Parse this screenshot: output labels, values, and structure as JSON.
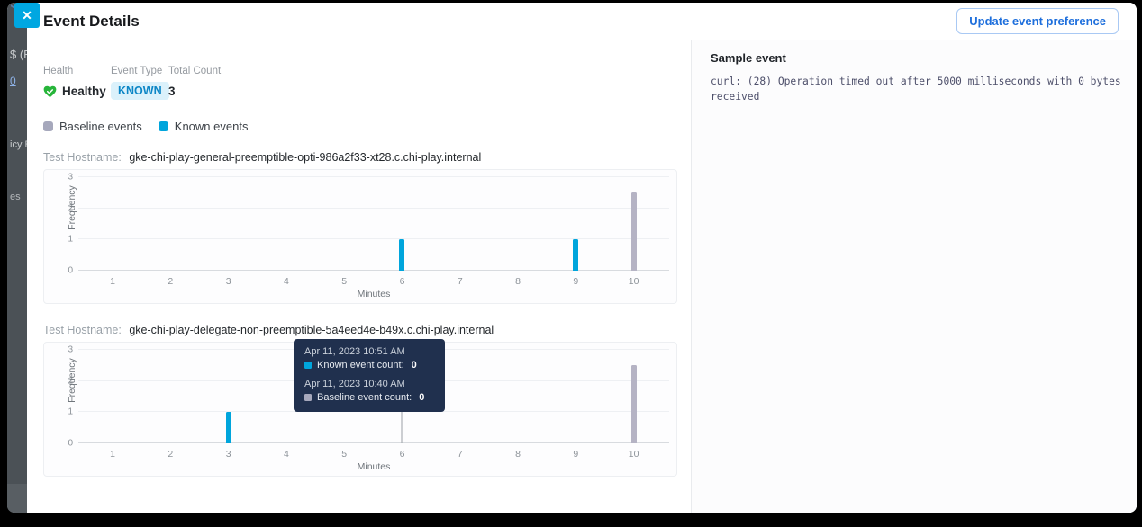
{
  "backdrop": {
    "fragments": {
      "f1": "$ (Ex",
      "f2": "0",
      "f3": "icy E",
      "f4": "es"
    }
  },
  "header": {
    "title": "Event Details",
    "close_icon": "✕",
    "update_button_label": "Update event preference"
  },
  "summary": {
    "health": {
      "label": "Health",
      "value": "Healthy"
    },
    "event_type": {
      "label": "Event Type",
      "value": "KNOWN"
    },
    "total_count": {
      "label": "Total Count",
      "value": "3"
    }
  },
  "legend": {
    "items": [
      {
        "label": "Baseline events",
        "color": "#a6a8bc"
      },
      {
        "label": "Known events",
        "color": "#00a5dc"
      }
    ]
  },
  "labels": {
    "hostname_label": "Test Hostname:"
  },
  "chart_data": [
    {
      "type": "bar",
      "hostname": "gke-chi-play-general-preemptible-opti-986a2f33-xt28.c.chi-play.internal",
      "xlabel": "Minutes",
      "ylabel": "Frequency",
      "x_ticks": [
        1,
        2,
        3,
        4,
        5,
        6,
        7,
        8,
        9,
        10
      ],
      "y_ticks": [
        0,
        1,
        2,
        3
      ],
      "ylim": [
        0,
        3
      ],
      "series": [
        {
          "name": "Known events",
          "color": "#00a5dc",
          "points": [
            {
              "x": 6,
              "y": 1
            },
            {
              "x": 9,
              "y": 1
            }
          ]
        },
        {
          "name": "Baseline events",
          "color": "#b5b3c4",
          "points": [
            {
              "x": 10,
              "y": 2.5
            }
          ]
        }
      ]
    },
    {
      "type": "bar",
      "hostname": "gke-chi-play-delegate-non-preemptible-5a4eed4e-b49x.c.chi-play.internal",
      "xlabel": "Minutes",
      "ylabel": "Frequency",
      "x_ticks": [
        1,
        2,
        3,
        4,
        5,
        6,
        7,
        8,
        9,
        10
      ],
      "y_ticks": [
        0,
        1,
        2,
        3
      ],
      "ylim": [
        0,
        3
      ],
      "crosshair_x": 6,
      "series": [
        {
          "name": "Known events",
          "color": "#00a5dc",
          "points": [
            {
              "x": 3,
              "y": 1
            }
          ]
        },
        {
          "name": "Baseline events",
          "color": "#b5b3c4",
          "points": [
            {
              "x": 10,
              "y": 2.5
            }
          ]
        }
      ],
      "tooltip": {
        "groups": [
          {
            "time": "Apr 11, 2023 10:51 AM",
            "swatch_color": "#00a5dc",
            "label": "Known event count:",
            "value": "0"
          },
          {
            "time": "Apr 11, 2023 10:40 AM",
            "swatch_color": "#a6a8bc",
            "label": "Baseline event count:",
            "value": "0"
          }
        ]
      }
    }
  ],
  "sample_event": {
    "title": "Sample event",
    "body": "curl: (28) Operation timed out after 5000 milliseconds with 0 bytes received"
  },
  "colors": {
    "accent_cyan": "#00a5dc",
    "baseline_gray": "#b5b3c4",
    "healthy_green": "#27b53a",
    "known_badge_bg": "#dbf1fb",
    "known_badge_text": "#0c86c6",
    "tooltip_bg": "#20304e",
    "button_blue": "#1e6fdc"
  }
}
